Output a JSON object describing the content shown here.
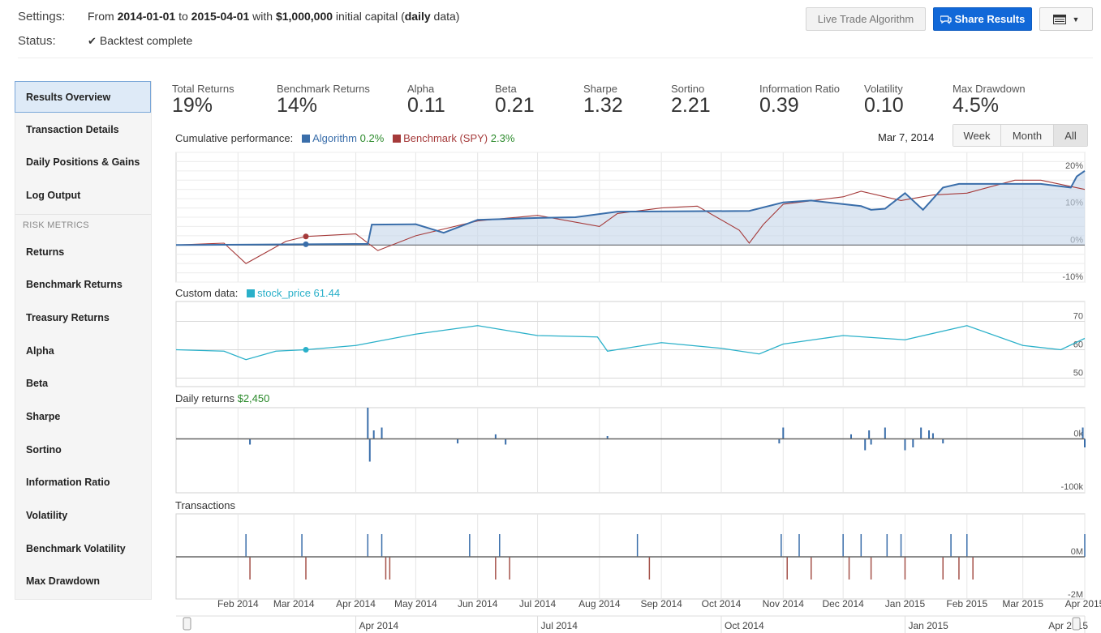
{
  "settings": {
    "label": "Settings:",
    "from_text": "From ",
    "start": "2014-01-01",
    "to_text": " to ",
    "end": "2015-04-01",
    "with_text": " with ",
    "capital": "$1,000,000",
    "initial_text": " initial capital (",
    "frequency": "daily",
    "data_text": " data)"
  },
  "status": {
    "label": "Status:",
    "value": "Backtest complete"
  },
  "toolbar": {
    "live_label": "Live Trade Algorithm",
    "share_label": "Share Results"
  },
  "sidebar": {
    "items": [
      {
        "label": "Results Overview"
      },
      {
        "label": "Transaction Details"
      },
      {
        "label": "Daily Positions & Gains"
      },
      {
        "label": "Log Output"
      }
    ],
    "section_header": "RISK METRICS",
    "risk_items": [
      {
        "label": "Returns"
      },
      {
        "label": "Benchmark Returns"
      },
      {
        "label": "Treasury Returns"
      },
      {
        "label": "Alpha"
      },
      {
        "label": "Beta"
      },
      {
        "label": "Sharpe"
      },
      {
        "label": "Sortino"
      },
      {
        "label": "Information Ratio"
      },
      {
        "label": "Volatility"
      },
      {
        "label": "Benchmark Volatility"
      },
      {
        "label": "Max Drawdown"
      }
    ]
  },
  "metrics": [
    {
      "label": "Total Returns",
      "value": "19%"
    },
    {
      "label": "Benchmark Returns",
      "value": "14%"
    },
    {
      "label": "Alpha",
      "value": "0.11"
    },
    {
      "label": "Beta",
      "value": "0.21"
    },
    {
      "label": "Sharpe",
      "value": "1.32"
    },
    {
      "label": "Sortino",
      "value": "2.21"
    },
    {
      "label": "Information Ratio",
      "value": "0.39"
    },
    {
      "label": "Volatility",
      "value": "0.10"
    },
    {
      "label": "Max Drawdown",
      "value": "4.5%"
    }
  ],
  "range": {
    "hover_date": "Mar 7, 2014",
    "buttons": [
      "Week",
      "Month",
      "All"
    ],
    "selected": "All"
  },
  "colors": {
    "algorithm": "#3a6eaa",
    "benchmark": "#a53a3a",
    "custom": "#2ab0c9",
    "buy": "#3a6eaa",
    "sell": "#a5524a"
  },
  "chart_data": [
    {
      "type": "line",
      "title": "Cumulative performance:",
      "series": [
        {
          "name": "Algorithm",
          "legend_value": "0.2%",
          "x": [
            "2014-01-01",
            "2014-03-07",
            "2014-04-07",
            "2014-04-09",
            "2014-05-01",
            "2014-05-15",
            "2014-06-01",
            "2014-07-01",
            "2014-07-20",
            "2014-08-10",
            "2014-09-15",
            "2014-10-15",
            "2014-11-01",
            "2014-11-15",
            "2014-12-10",
            "2014-12-15",
            "2014-12-22",
            "2015-01-01",
            "2015-01-10",
            "2015-01-20",
            "2015-01-28",
            "2015-02-15",
            "2015-03-10",
            "2015-03-25",
            "2015-03-28",
            "2015-04-01"
          ],
          "y": [
            0.0,
            0.2,
            0.3,
            5.5,
            5.6,
            3.3,
            6.8,
            7.3,
            7.5,
            9.0,
            9.1,
            9.2,
            11.5,
            12.0,
            10.5,
            9.5,
            9.8,
            14.0,
            9.5,
            15.5,
            16.5,
            16.5,
            16.5,
            15.5,
            18.5,
            20.0
          ]
        },
        {
          "name": "Benchmark (SPY)",
          "legend_value": "2.3%",
          "x": [
            "2014-01-01",
            "2014-01-25",
            "2014-02-05",
            "2014-02-25",
            "2014-03-07",
            "2014-04-01",
            "2014-04-12",
            "2014-05-01",
            "2014-06-01",
            "2014-07-01",
            "2014-08-01",
            "2014-08-10",
            "2014-09-01",
            "2014-09-19",
            "2014-10-10",
            "2014-10-15",
            "2014-10-22",
            "2014-11-01",
            "2014-12-01",
            "2014-12-10",
            "2014-12-30",
            "2015-01-15",
            "2015-02-01",
            "2015-02-25",
            "2015-03-10",
            "2015-04-01"
          ],
          "y": [
            0.0,
            0.5,
            -5.0,
            1.0,
            2.3,
            3.0,
            -1.5,
            2.5,
            6.5,
            8.0,
            5.0,
            8.5,
            10.0,
            10.5,
            4.0,
            0.5,
            5.5,
            11.0,
            13.0,
            14.5,
            12.0,
            13.5,
            14.0,
            17.5,
            17.5,
            15.0
          ]
        }
      ],
      "y_ticks": [
        "20%",
        "10%",
        "0%",
        "-10%"
      ],
      "ylim": [
        -10,
        25
      ]
    },
    {
      "type": "line",
      "title": "Custom data:",
      "series": [
        {
          "name": "stock_price",
          "legend_value": "61.44",
          "x": [
            "2014-01-01",
            "2014-01-25",
            "2014-02-05",
            "2014-02-20",
            "2014-03-07",
            "2014-04-01",
            "2014-05-01",
            "2014-06-01",
            "2014-07-01",
            "2014-07-31",
            "2014-08-05",
            "2014-09-01",
            "2014-10-01",
            "2014-10-20",
            "2014-11-01",
            "2014-12-01",
            "2015-01-01",
            "2015-02-01",
            "2015-03-01",
            "2015-03-20",
            "2015-04-01"
          ],
          "y": [
            60.0,
            59.5,
            56.5,
            59.5,
            60.0,
            61.5,
            65.5,
            68.5,
            65.0,
            64.5,
            59.5,
            62.5,
            60.5,
            58.5,
            62.0,
            65.0,
            63.5,
            68.5,
            61.5,
            60.0,
            64.0
          ]
        }
      ],
      "y_ticks": [
        "70",
        "60",
        "50"
      ],
      "ylim": [
        47,
        77
      ]
    },
    {
      "type": "bar",
      "title": "Daily returns",
      "title_value": "$2,450",
      "x": [
        "2014-02-07",
        "2014-04-07",
        "2014-04-08",
        "2014-04-10",
        "2014-04-14",
        "2014-05-22",
        "2014-06-10",
        "2014-06-15",
        "2014-08-05",
        "2014-10-30",
        "2014-11-01",
        "2014-12-05",
        "2014-12-12",
        "2014-12-14",
        "2014-12-15",
        "2014-12-22",
        "2015-01-01",
        "2015-01-05",
        "2015-01-09",
        "2015-01-13",
        "2015-01-15",
        "2015-01-20",
        "2015-03-31",
        "2015-04-01"
      ],
      "values": [
        -10000,
        55000,
        -40000,
        15000,
        20000,
        -8000,
        8000,
        -10000,
        5000,
        -8000,
        20000,
        8000,
        -20000,
        15000,
        -10000,
        20000,
        -20000,
        -15000,
        20000,
        15000,
        10000,
        -8000,
        20000,
        -15000
      ],
      "y_ticks": [
        "0k",
        "-100k"
      ],
      "ylim": [
        -95000,
        55000
      ]
    },
    {
      "type": "bar",
      "title": "Transactions",
      "x": [
        "2014-02-05",
        "2014-02-07",
        "2014-03-05",
        "2014-03-07",
        "2014-04-07",
        "2014-04-14",
        "2014-04-16",
        "2014-04-18",
        "2014-05-28",
        "2014-06-10",
        "2014-06-12",
        "2014-06-17",
        "2014-08-20",
        "2014-08-26",
        "2014-10-31",
        "2014-11-03",
        "2014-11-09",
        "2014-11-15",
        "2014-12-01",
        "2014-12-04",
        "2014-12-10",
        "2014-12-15",
        "2014-12-23",
        "2014-12-30",
        "2015-01-01",
        "2015-01-20",
        "2015-01-24",
        "2015-01-28",
        "2015-02-01",
        "2015-02-04",
        "2015-04-01"
      ],
      "values": [
        1000000,
        -1000000,
        1000000,
        -1000000,
        1000000,
        1000000,
        -1000000,
        -1000000,
        1000000,
        -1000000,
        1000000,
        -1000000,
        1000000,
        -1000000,
        1000000,
        -1000000,
        1000000,
        -1000000,
        1000000,
        -1000000,
        1000000,
        -1000000,
        1000000,
        1000000,
        -1000000,
        -1000000,
        1000000,
        -1000000,
        1000000,
        -1000000,
        1000000
      ],
      "y_ticks": [
        "0M",
        "-2M"
      ],
      "ylim": [
        -2000000,
        2000000
      ]
    }
  ],
  "x_axis": {
    "labels": [
      "Feb 2014",
      "Mar 2014",
      "Apr 2014",
      "May 2014",
      "Jun 2014",
      "Jul 2014",
      "Aug 2014",
      "Sep 2014",
      "Oct 2014",
      "Nov 2014",
      "Dec 2014",
      "Jan 2015",
      "Feb 2015",
      "Mar 2015",
      "Apr 2015"
    ]
  },
  "navigator": {
    "labels": [
      "Apr 2014",
      "Jul 2014",
      "Oct 2014",
      "Jan 2015",
      "Apr 2015"
    ]
  }
}
